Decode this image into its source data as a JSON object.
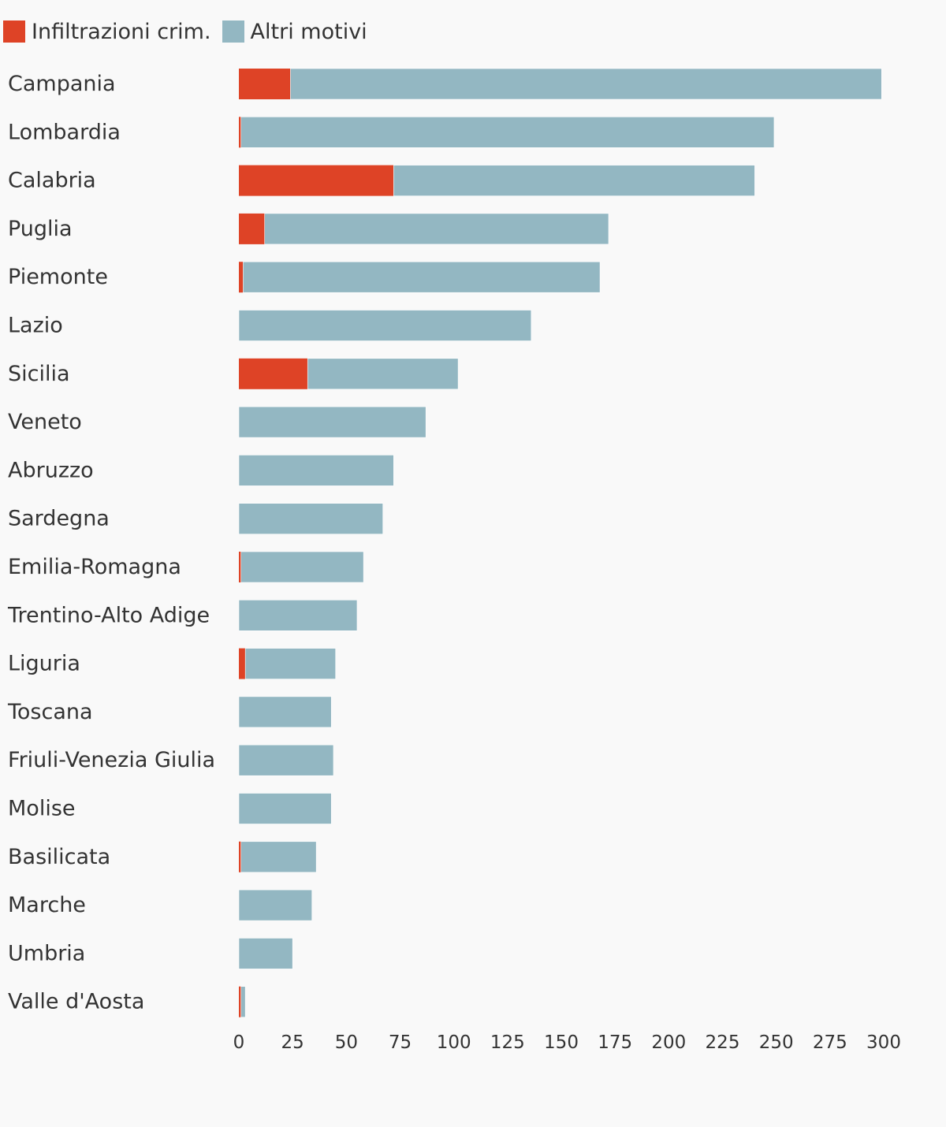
{
  "chart_data": {
    "type": "bar",
    "orientation": "horizontal",
    "stacked": true,
    "categories": [
      "Campania",
      "Lombardia",
      "Calabria",
      "Puglia",
      "Piemonte",
      "Lazio",
      "Sicilia",
      "Veneto",
      "Abruzzo",
      "Sardegna",
      "Emilia-Romagna",
      "Trentino-Alto Adige",
      "Liguria",
      "Toscana",
      "Friuli-Venezia Giulia",
      "Molise",
      "Basilicata",
      "Marche",
      "Umbria",
      "Valle d'Aosta"
    ],
    "series": [
      {
        "name": "Infiltrazioni crim.",
        "color": "#de4326",
        "values": [
          24,
          1,
          72,
          12,
          2,
          0,
          32,
          0,
          0,
          0,
          1,
          0,
          3,
          0,
          0,
          0,
          1,
          0,
          0,
          1
        ]
      },
      {
        "name": "Altri motivi",
        "color": "#93b7c2",
        "values": [
          275,
          248,
          168,
          160,
          166,
          136,
          70,
          87,
          72,
          67,
          57,
          55,
          42,
          43,
          44,
          43,
          35,
          34,
          25,
          2
        ]
      }
    ],
    "xlim": [
      0,
      300
    ],
    "xticks": [
      0,
      25,
      50,
      75,
      100,
      125,
      150,
      175,
      200,
      225,
      250,
      275,
      300
    ],
    "legend_position": "top-left",
    "grid": false
  }
}
